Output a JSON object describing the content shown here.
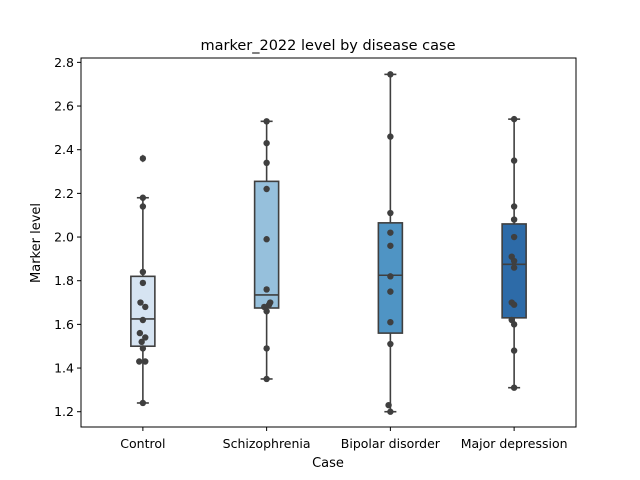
{
  "chart_data": {
    "type": "box",
    "title": "marker_2022 level by disease case",
    "xlabel": "Case",
    "ylabel": "Marker level",
    "ylim": [
      1.13,
      2.82
    ],
    "yticks": [
      "1.2",
      "1.4",
      "1.6",
      "1.8",
      "2.0",
      "2.2",
      "2.4",
      "2.6",
      "2.8"
    ],
    "grid": false,
    "categories": [
      "Control",
      "Schizophrenia",
      "Bipolar disorder",
      "Major depression"
    ],
    "colors": [
      "#d6e4f2",
      "#96c0dc",
      "#4f94c4",
      "#2d6ba8"
    ],
    "boxes": [
      {
        "q1": 1.5,
        "median": 1.625,
        "q3": 1.82,
        "whisker_low": 1.24,
        "whisker_high": 2.18,
        "fliers": [
          2.36
        ]
      },
      {
        "q1": 1.675,
        "median": 1.735,
        "q3": 2.255,
        "whisker_low": 1.35,
        "whisker_high": 2.53,
        "fliers": []
      },
      {
        "q1": 1.56,
        "median": 1.825,
        "q3": 2.065,
        "whisker_low": 1.2,
        "whisker_high": 2.745,
        "fliers": []
      },
      {
        "q1": 1.63,
        "median": 1.875,
        "q3": 2.06,
        "whisker_low": 1.31,
        "whisker_high": 2.54,
        "fliers": []
      }
    ],
    "points": [
      [
        [
          0.0,
          1.24
        ],
        [
          0.0,
          2.18
        ],
        [
          0.0,
          2.14
        ],
        [
          0.0,
          2.36
        ],
        [
          0.0,
          1.84
        ],
        [
          0.0,
          1.79
        ],
        [
          -0.04,
          1.7
        ],
        [
          0.04,
          1.68
        ],
        [
          0.0,
          1.62
        ],
        [
          -0.05,
          1.56
        ],
        [
          0.04,
          1.54
        ],
        [
          -0.02,
          1.52
        ],
        [
          0.0,
          1.49
        ],
        [
          -0.06,
          1.43
        ],
        [
          0.04,
          1.43
        ]
      ],
      [
        [
          0.0,
          2.53
        ],
        [
          0.0,
          2.43
        ],
        [
          0.0,
          2.34
        ],
        [
          0.0,
          2.22
        ],
        [
          0.0,
          1.99
        ],
        [
          0.0,
          1.76
        ],
        [
          0.06,
          1.7
        ],
        [
          0.04,
          1.69
        ],
        [
          -0.04,
          1.68
        ],
        [
          0.0,
          1.66
        ],
        [
          0.0,
          1.49
        ],
        [
          0.0,
          1.35
        ]
      ],
      [
        [
          0.0,
          2.745
        ],
        [
          0.0,
          2.46
        ],
        [
          0.0,
          2.11
        ],
        [
          0.0,
          2.02
        ],
        [
          0.0,
          1.96
        ],
        [
          0.0,
          1.82
        ],
        [
          0.0,
          1.75
        ],
        [
          0.0,
          1.61
        ],
        [
          0.0,
          1.51
        ],
        [
          -0.03,
          1.23
        ],
        [
          0.0,
          1.2
        ]
      ],
      [
        [
          0.0,
          2.54
        ],
        [
          0.0,
          2.35
        ],
        [
          0.0,
          2.14
        ],
        [
          0.0,
          2.08
        ],
        [
          0.0,
          2.0
        ],
        [
          -0.04,
          1.91
        ],
        [
          0.0,
          1.89
        ],
        [
          0.0,
          1.86
        ],
        [
          -0.04,
          1.7
        ],
        [
          0.0,
          1.69
        ],
        [
          -0.04,
          1.62
        ],
        [
          0.0,
          1.6
        ],
        [
          0.0,
          1.48
        ],
        [
          0.0,
          1.31
        ]
      ]
    ]
  }
}
